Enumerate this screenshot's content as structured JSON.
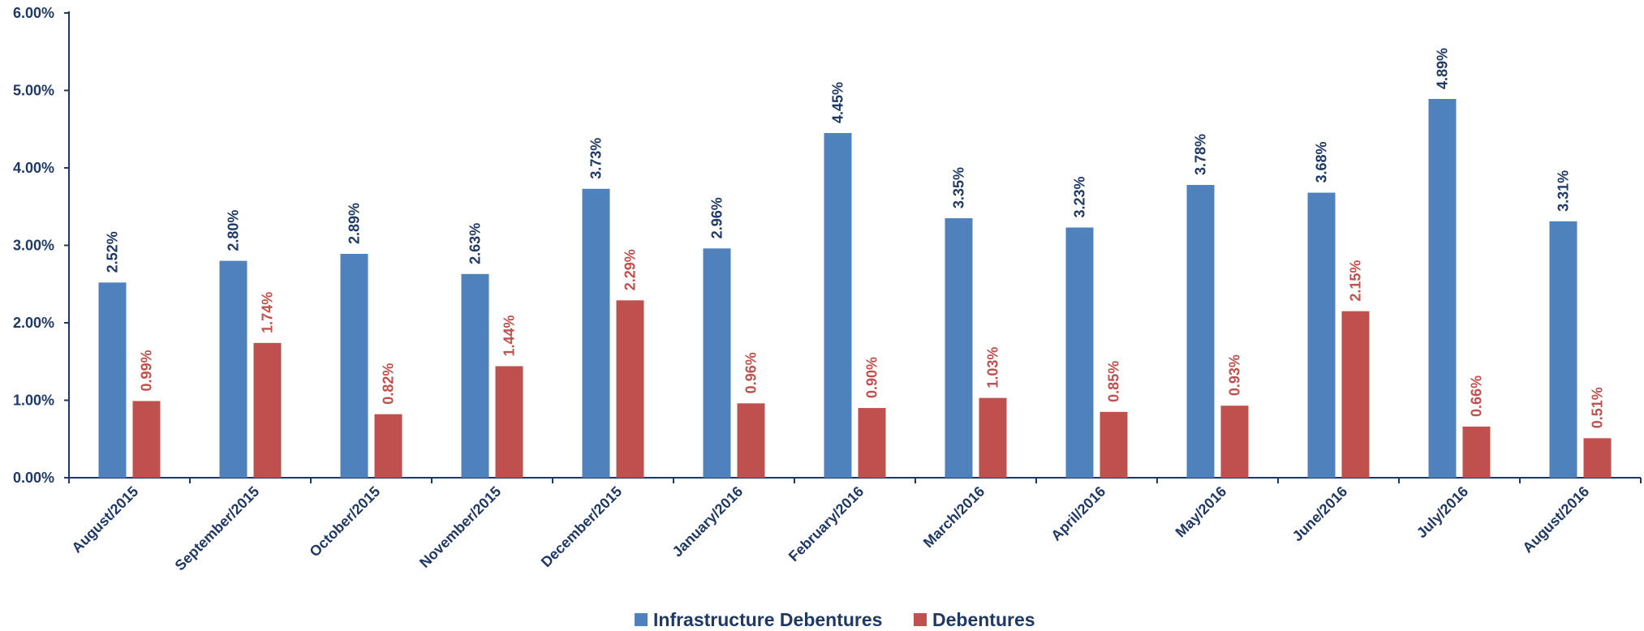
{
  "chart_data": {
    "type": "bar",
    "title": "",
    "xlabel": "",
    "ylabel": "",
    "ylim": [
      0,
      6
    ],
    "y_ticks": [
      "0.00%",
      "1.00%",
      "2.00%",
      "3.00%",
      "4.00%",
      "5.00%",
      "6.00%"
    ],
    "grid": false,
    "legend_position": "bottom",
    "categories": [
      "August/2015",
      "September/2015",
      "October/2015",
      "November/2015",
      "December/2015",
      "January/2016",
      "February/2016",
      "March/2016",
      "April/2016",
      "May/2016",
      "June/2016",
      "July/2016",
      "August/2016"
    ],
    "series": [
      {
        "name": "Infrastructure Debentures",
        "color": "#4f81bd",
        "label_color": "#1f3864",
        "values": [
          2.52,
          2.8,
          2.89,
          2.63,
          3.73,
          2.96,
          4.45,
          3.35,
          3.23,
          3.78,
          3.68,
          4.89,
          3.31
        ],
        "labels": [
          "2.52%",
          "2.80%",
          "2.89%",
          "2.63%",
          "3.73%",
          "2.96%",
          "4.45%",
          "3.35%",
          "3.23%",
          "3.78%",
          "3.68%",
          "4.89%",
          "3.31%"
        ]
      },
      {
        "name": "Debentures",
        "color": "#c0504d",
        "label_color": "#c0504d",
        "values": [
          0.99,
          1.74,
          0.82,
          1.44,
          2.29,
          0.96,
          0.9,
          1.03,
          0.85,
          0.93,
          2.15,
          0.66,
          0.51
        ],
        "labels": [
          "0.99%",
          "1.74%",
          "0.82%",
          "1.44%",
          "2.29%",
          "0.96%",
          "0.90%",
          "1.03%",
          "0.85%",
          "0.93%",
          "2.15%",
          "0.66%",
          "0.51%"
        ]
      }
    ]
  }
}
